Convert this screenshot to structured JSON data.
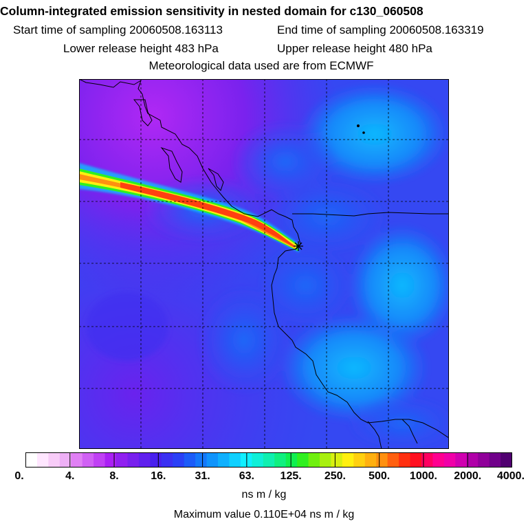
{
  "chart_data": {
    "type": "heatmap",
    "title": "Column-integrated emission sensitivity in nested domain for c130_060508",
    "subtitle_lines": {
      "start": "Start time of sampling 20060508.163113",
      "end": "End time of sampling 20060508.163319",
      "lower": "Lower release height  483 hPa",
      "upper": "Upper release height  480 hPa",
      "met": "Meteorological data used are from ECMWF"
    },
    "colorbar": {
      "tick_labels": [
        "0.",
        "4.",
        "8.",
        "16.",
        "31.",
        "63.",
        "125.",
        "250.",
        "500.",
        "1000.",
        "2000.",
        "4000."
      ],
      "tick_values": [
        0,
        4,
        8,
        16,
        31,
        63,
        125,
        250,
        500,
        1000,
        2000,
        4000
      ],
      "units": "ns m / kg",
      "colors": [
        "#ffffff",
        "#ffe6ff",
        "#f8ccf8",
        "#eeb0f6",
        "#e080f4",
        "#d060f4",
        "#c040f4",
        "#aa20f4",
        "#9020f0",
        "#7820ee",
        "#6020ee",
        "#4820ee",
        "#3a30f2",
        "#2a40f6",
        "#1c5cf8",
        "#1478fa",
        "#1094fc",
        "#10b0fe",
        "#10d0ff",
        "#10f0ff",
        "#10f0d8",
        "#10f0b0",
        "#10f080",
        "#10f050",
        "#30f020",
        "#70f010",
        "#a8f010",
        "#d8f010",
        "#fff010",
        "#ffd010",
        "#ffb010",
        "#ff9010",
        "#ff6010",
        "#ff3010",
        "#ff1020",
        "#ff0060",
        "#ff0090",
        "#f000a8",
        "#d000b0",
        "#b000a8",
        "#90009a",
        "#70008a",
        "#500070"
      ]
    },
    "max_value_text": "Maximum value  0.110E+04 ns m / kg",
    "release_point": "star-marker"
  }
}
